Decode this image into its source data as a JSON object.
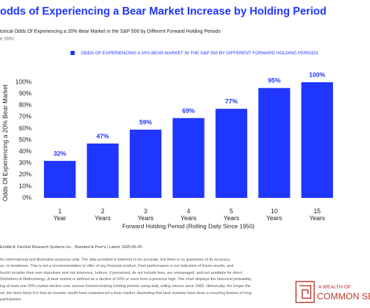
{
  "chart_data": {
    "type": "bar",
    "title": "odds of Experiencing a Bear Market Increase by Holding Period",
    "subtitle": "torical Odds Of Experiencing a 20% Bear Market in the S&P 500 by Different Forward Holding Periods",
    "subtitle2": "e 1950",
    "x_label": "Forward Holding Period (Rolling Daily Since 1950)",
    "y_label": "Odds Of Experiencing a 20% Bear Market",
    "categories": [
      "1\nYear",
      "2\nYears",
      "3\nYears",
      "4\nYears",
      "5\nYears",
      "10\nYears",
      "15\nYears"
    ],
    "series": [
      {
        "name": "ODDS OF EXPERIENCING A 20% BEAR MARKET IN THE S&P 500 BY DIFFERENT FORWARD HOLDING PERIODS",
        "color": "#1f36ff",
        "values": [
          32,
          47,
          59,
          69,
          77,
          95,
          100
        ],
        "value_labels": [
          "32%",
          "47%",
          "59%",
          "69%",
          "77%",
          "95%",
          "100%"
        ]
      }
    ],
    "ylim": [
      0,
      100
    ],
    "yticks": [
      {
        "value": 0,
        "label": "0%"
      },
      {
        "value": 10,
        "label": "10%"
      },
      {
        "value": 20,
        "label": "20%"
      },
      {
        "value": 30,
        "label": "30%"
      },
      {
        "value": 40,
        "label": "40%"
      },
      {
        "value": 50,
        "label": "50%"
      },
      {
        "value": 60,
        "label": "60%"
      },
      {
        "value": 70,
        "label": "70%"
      },
      {
        "value": 80,
        "label": "80%"
      },
      {
        "value": 90,
        "label": "90%"
      },
      {
        "value": 100,
        "label": "100%"
      }
    ],
    "grid": false
  },
  "footer": {
    "lines": [
      "Exhibit A, FactSet Research Systems Inc., Standard & Poor's | Latest: 2025-05-29",
      "for informational and illustrative purposes only. The data provided is believed to be accurate, but there is no guarantee of its accuracy,",
      "ss, or timeliness. This is not a recommendation or offer of any financial product. Past performance is not indicative of future results, and",
      "hould consider their own objectives and risk tolerance. Indices, if presented, do not include fees, are unmanaged, and not available for direct",
      "Definitions & Methodology: A bear market is defined as a decline of 20% or more from a previous high. The chart displays the historical probability",
      "ing at least one 20% market decline over various forward-looking holding periods using daily rolling returns since 1950. Historically, the longer the",
      "od, the more likely it is that an investor would have experienced a bear market, illustrating that bear markets have been a recurring feature of long-",
      " participation."
    ],
    "logo_top": "A WEALTH OF",
    "logo_bottom": "COMMON SEN"
  }
}
